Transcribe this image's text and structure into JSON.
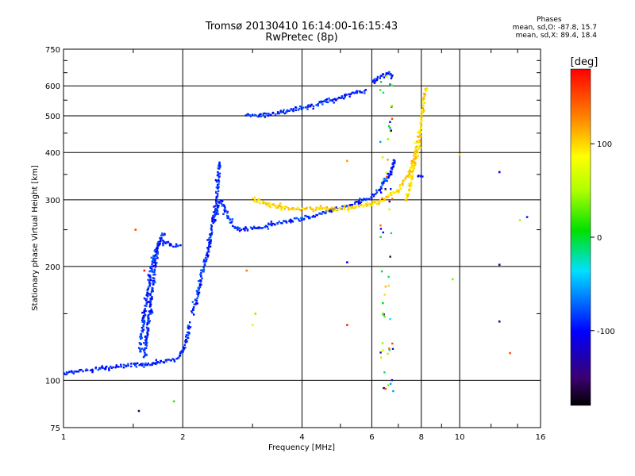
{
  "header": {
    "title": "Tromsø 20130410 16:14:00-16:15:43",
    "subtitle": "RwPretec (8p)"
  },
  "stats": {
    "heading": "Phases",
    "line_o": "mean, sd,O: -87.8, 15.7",
    "line_x": "mean, sd,X: 89.4, 18.4"
  },
  "chart_data": {
    "type": "scatter",
    "title": "Tromsø 20130410 16:14:00-16:15:43",
    "subtitle": "RwPretec (8p)",
    "xlabel": "Frequency [MHz]",
    "ylabel": "Stationary phase Virtual Height [km]",
    "x_scale": "log",
    "y_scale": "log",
    "xlim": [
      1,
      16
    ],
    "ylim": [
      75,
      750
    ],
    "x_ticks": [
      1,
      2,
      4,
      6,
      8,
      10,
      16
    ],
    "y_ticks": [
      75,
      100,
      200,
      300,
      400,
      500,
      600,
      750
    ],
    "grid": true,
    "colorbar": {
      "label": "[deg]",
      "range": [
        -180,
        180
      ],
      "ticks": [
        -100,
        0,
        100
      ]
    },
    "series": [
      {
        "mode": "O",
        "phase_deg": -90,
        "segments": [
          [
            [
              1.0,
              104
            ],
            [
              1.1,
              106
            ],
            [
              1.2,
              107
            ],
            [
              1.3,
              108
            ],
            [
              1.4,
              109
            ],
            [
              1.5,
              110
            ],
            [
              1.6,
              110
            ],
            [
              1.7,
              111
            ],
            [
              1.8,
              112
            ],
            [
              1.9,
              113
            ],
            [
              1.97,
              116
            ],
            [
              2.02,
              122
            ],
            [
              2.05,
              130
            ],
            [
              2.08,
              142
            ]
          ],
          [
            [
              1.55,
              120
            ],
            [
              1.58,
              135
            ],
            [
              1.61,
              155
            ],
            [
              1.64,
              175
            ],
            [
              1.67,
              200
            ],
            [
              1.71,
              220
            ],
            [
              1.75,
              232
            ],
            [
              1.8,
              232
            ],
            [
              1.86,
              228
            ],
            [
              1.92,
              227
            ],
            [
              1.98,
              228
            ]
          ],
          [
            [
              1.6,
              115
            ],
            [
              1.62,
              130
            ],
            [
              1.65,
              150
            ],
            [
              1.67,
              170
            ],
            [
              1.69,
              190
            ],
            [
              1.71,
              205
            ],
            [
              1.73,
              225
            ],
            [
              1.76,
              240
            ],
            [
              1.8,
              245
            ]
          ],
          [
            [
              2.12,
              150
            ],
            [
              2.2,
              175
            ],
            [
              2.26,
              200
            ],
            [
              2.32,
              220
            ],
            [
              2.36,
              250
            ],
            [
              2.4,
              270
            ],
            [
              2.44,
              310
            ],
            [
              2.48,
              380
            ]
          ],
          [
            [
              2.4,
              260
            ],
            [
              2.45,
              290
            ],
            [
              2.5,
              300
            ],
            [
              2.55,
              285
            ],
            [
              2.62,
              265
            ],
            [
              2.7,
              255
            ],
            [
              2.8,
              250
            ],
            [
              3.0,
              252
            ],
            [
              3.3,
              257
            ],
            [
              3.6,
              262
            ],
            [
              4.0,
              268
            ],
            [
              4.5,
              276
            ],
            [
              5.0,
              285
            ],
            [
              5.5,
              294
            ],
            [
              6.0,
              305
            ],
            [
              6.3,
              320
            ],
            [
              6.6,
              345
            ],
            [
              6.9,
              385
            ]
          ],
          [
            [
              2.9,
              500
            ],
            [
              3.1,
              500
            ],
            [
              3.3,
              505
            ],
            [
              3.5,
              510
            ],
            [
              3.8,
              520
            ],
            [
              4.2,
              530
            ],
            [
              4.6,
              545
            ],
            [
              5.0,
              560
            ],
            [
              5.4,
              575
            ],
            [
              5.8,
              585
            ]
          ],
          [
            [
              6.0,
              615
            ],
            [
              6.2,
              625
            ],
            [
              6.4,
              640
            ],
            [
              6.6,
              650
            ],
            [
              6.8,
              630
            ]
          ],
          [
            [
              7.9,
              350
            ],
            [
              8.1,
              345
            ]
          ]
        ]
      },
      {
        "mode": "X",
        "phase_deg": 100,
        "segments": [
          [
            [
              3.0,
              300
            ],
            [
              3.4,
              288
            ],
            [
              3.8,
              284
            ],
            [
              4.2,
              284
            ],
            [
              4.6,
              284
            ],
            [
              5.0,
              284
            ],
            [
              5.4,
              286
            ],
            [
              5.8,
              290
            ],
            [
              6.2,
              295
            ],
            [
              6.6,
              305
            ],
            [
              7.0,
              320
            ],
            [
              7.4,
              345
            ],
            [
              7.7,
              390
            ],
            [
              7.9,
              440
            ],
            [
              8.05,
              500
            ],
            [
              8.15,
              560
            ],
            [
              8.2,
              600
            ]
          ],
          [
            [
              7.3,
              300
            ],
            [
              7.5,
              330
            ],
            [
              7.7,
              370
            ],
            [
              7.9,
              420
            ]
          ]
        ]
      }
    ],
    "scattered_points": [
      {
        "x": 1.52,
        "y": 250,
        "phase": 150
      },
      {
        "x": 1.6,
        "y": 195,
        "phase": 170
      },
      {
        "x": 1.55,
        "y": 83,
        "phase": -150
      },
      {
        "x": 1.9,
        "y": 88,
        "phase": 20
      },
      {
        "x": 2.9,
        "y": 195,
        "phase": 130
      },
      {
        "x": 3.0,
        "y": 140,
        "phase": 70
      },
      {
        "x": 3.05,
        "y": 150,
        "phase": 40
      },
      {
        "x": 5.2,
        "y": 380,
        "phase": 120
      },
      {
        "x": 5.2,
        "y": 205,
        "phase": -100
      },
      {
        "x": 5.2,
        "y": 140,
        "phase": 160
      },
      {
        "x": 6.4,
        "y": 160,
        "phase": 0
      },
      {
        "x": 6.4,
        "y": 120,
        "phase": 60
      },
      {
        "x": 6.5,
        "y": 95,
        "phase": 150
      },
      {
        "x": 9.6,
        "y": 185,
        "phase": 40
      },
      {
        "x": 10.0,
        "y": 395,
        "phase": 100
      },
      {
        "x": 12.6,
        "y": 355,
        "phase": -100
      },
      {
        "x": 12.6,
        "y": 202,
        "phase": -150
      },
      {
        "x": 12.6,
        "y": 143,
        "phase": -140
      },
      {
        "x": 13.4,
        "y": 118,
        "phase": 150
      },
      {
        "x": 14.2,
        "y": 265,
        "phase": 50
      },
      {
        "x": 14.8,
        "y": 270,
        "phase": -90
      }
    ]
  }
}
